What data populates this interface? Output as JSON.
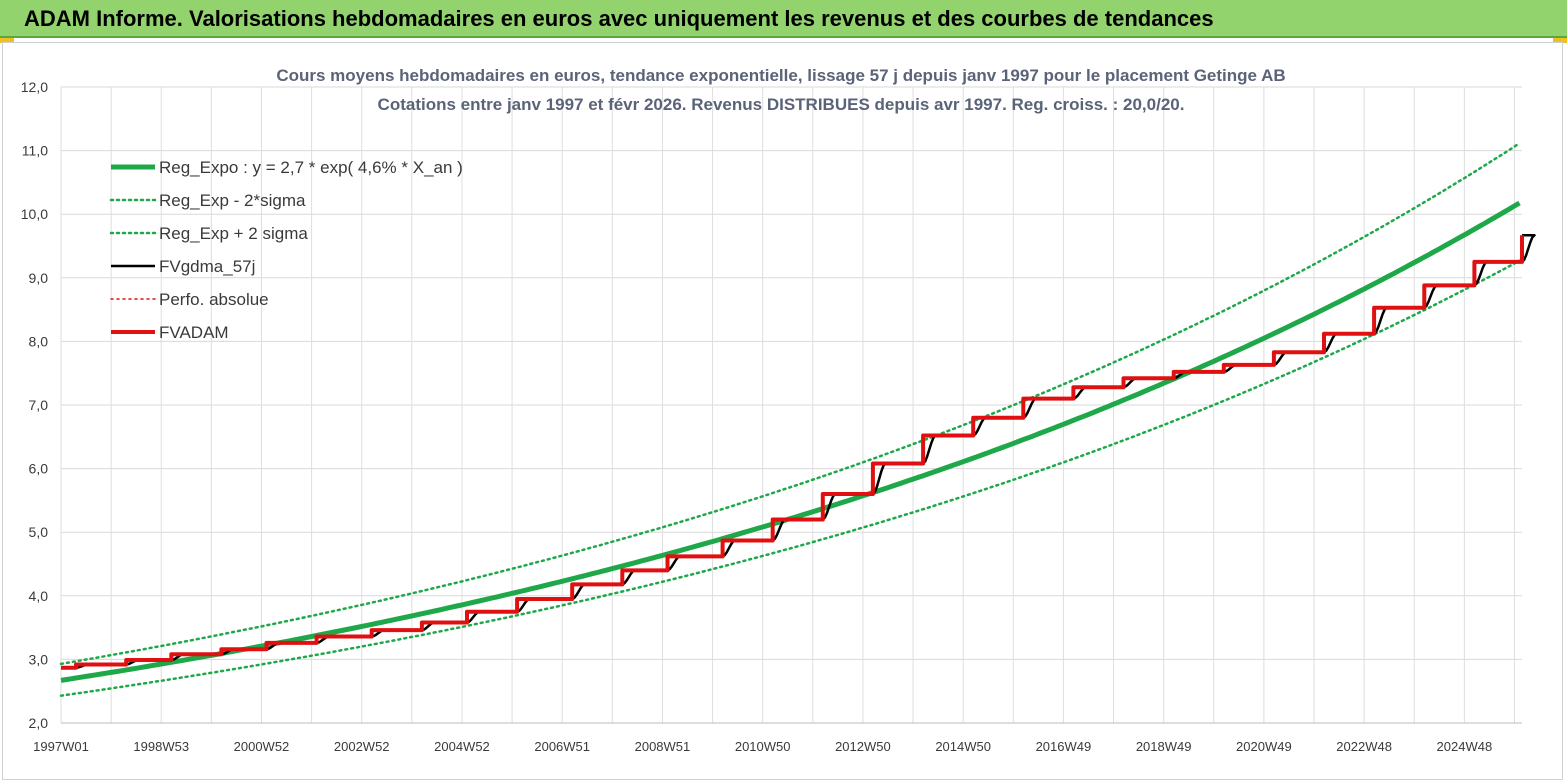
{
  "header": {
    "title": "ADAM Informe. Valorisations hebdomadaires en euros avec uniquement les revenus et des courbes de tendances",
    "background": "#92d36e"
  },
  "chart_data": {
    "type": "line",
    "title_line1": "Cours moyens  hebdomadaires en euros, tendance exponentielle, lissage 57 j depuis janv 1997  pour le placement Getinge AB",
    "title_line2": "Cotations entre janv 1997  et  févr 2026.  Revenus DISTRIBUES  depuis avr 1997.  Reg.  croiss. : 20,0/20.",
    "x_range": [
      1997.0,
      2026.15
    ],
    "ylim": [
      2.0,
      12.0
    ],
    "y_ticks": [
      "2,0",
      "3,0",
      "4,0",
      "5,0",
      "6,0",
      "7,0",
      "8,0",
      "9,0",
      "10,0",
      "11,0",
      "12,0"
    ],
    "x_ticks": [
      {
        "label": "1997W01",
        "x": 1997.0
      },
      {
        "label": "1998W53",
        "x": 1999.0
      },
      {
        "label": "2000W52",
        "x": 2001.0
      },
      {
        "label": "2002W52",
        "x": 2003.0
      },
      {
        "label": "2004W52",
        "x": 2005.0
      },
      {
        "label": "2006W51",
        "x": 2007.0
      },
      {
        "label": "2008W51",
        "x": 2009.0
      },
      {
        "label": "2010W50",
        "x": 2011.0
      },
      {
        "label": "2012W50",
        "x": 2013.0
      },
      {
        "label": "2014W50",
        "x": 2015.0
      },
      {
        "label": "2016W49",
        "x": 2017.0
      },
      {
        "label": "2018W49",
        "x": 2019.0
      },
      {
        "label": "2020W49",
        "x": 2021.0
      },
      {
        "label": "2022W48",
        "x": 2023.0
      },
      {
        "label": "2024W48",
        "x": 2025.0
      }
    ],
    "grid": true,
    "legend_position": "top-left",
    "series": [
      {
        "name": "Reg_Expo : y = 2,7 * exp( 4,6% *  X_an )",
        "color": "#1fa84a",
        "style": "solid",
        "width": 5,
        "x": [
          1997.0,
          2000.0,
          2003.0,
          2006.0,
          2009.0,
          2012.0,
          2015.0,
          2018.0,
          2021.0,
          2024.0,
          2026.15
        ],
        "y": [
          2.67,
          3.07,
          3.52,
          4.04,
          4.64,
          5.33,
          6.12,
          7.02,
          8.07,
          9.26,
          10.2
        ]
      },
      {
        "name": "Reg_Exp - 2*sigma",
        "color": "#1fa84a",
        "style": "dotted",
        "width": 2.5,
        "x": [
          1997.0,
          2000.0,
          2003.0,
          2006.0,
          2009.0,
          2012.0,
          2015.0,
          2018.0,
          2021.0,
          2024.0,
          2026.15
        ],
        "y": [
          2.43,
          2.79,
          3.2,
          3.67,
          4.22,
          4.84,
          5.56,
          6.39,
          7.33,
          8.42,
          9.29
        ]
      },
      {
        "name": "Reg_Exp + 2 sigma",
        "color": "#1fa84a",
        "style": "dotted",
        "width": 2.5,
        "x": [
          1997.0,
          2000.0,
          2003.0,
          2006.0,
          2009.0,
          2012.0,
          2015.0,
          2018.0,
          2021.0,
          2024.0,
          2026.15
        ],
        "y": [
          2.93,
          3.37,
          3.87,
          4.44,
          5.1,
          5.86,
          6.73,
          7.72,
          8.87,
          10.19,
          11.14
        ]
      },
      {
        "name": "FVgdma_57j",
        "color": "#000000",
        "style": "solid",
        "width": 2.5,
        "x": [
          1997.0,
          1997.3,
          1998.3,
          1999.2,
          2000.2,
          2001.1,
          2002.1,
          2003.2,
          2004.2,
          2005.1,
          2006.1,
          2007.2,
          2008.2,
          2009.1,
          2010.2,
          2011.2,
          2012.2,
          2013.2,
          2014.2,
          2015.2,
          2016.2,
          2017.2,
          2018.2,
          2019.2,
          2020.2,
          2021.2,
          2022.2,
          2023.2,
          2024.2,
          2025.2,
          2026.15
        ],
        "y": [
          2.87,
          2.92,
          2.99,
          3.08,
          3.16,
          3.26,
          3.36,
          3.46,
          3.58,
          3.75,
          3.95,
          4.18,
          4.4,
          4.62,
          4.87,
          5.2,
          5.6,
          6.08,
          6.52,
          6.8,
          7.1,
          7.28,
          7.42,
          7.52,
          7.63,
          7.83,
          8.12,
          8.53,
          8.88,
          9.25,
          9.67
        ]
      },
      {
        "name": "Perfo. absolue",
        "color": "#e01010",
        "style": "dotted",
        "width": 1.5,
        "x": [],
        "y": []
      },
      {
        "name": "FVADAM",
        "color": "#e01010",
        "style": "step",
        "width": 4,
        "x": [
          1997.0,
          1997.3,
          1998.3,
          1999.2,
          2000.2,
          2001.1,
          2002.1,
          2003.2,
          2004.2,
          2005.1,
          2006.1,
          2007.2,
          2008.2,
          2009.1,
          2010.2,
          2011.2,
          2012.2,
          2013.2,
          2014.2,
          2015.2,
          2016.2,
          2017.2,
          2018.2,
          2019.2,
          2020.2,
          2021.2,
          2022.2,
          2023.2,
          2024.2,
          2025.2,
          2026.15
        ],
        "y": [
          2.87,
          2.92,
          2.99,
          3.08,
          3.16,
          3.26,
          3.36,
          3.46,
          3.58,
          3.75,
          3.95,
          4.18,
          4.4,
          4.62,
          4.87,
          5.2,
          5.6,
          6.08,
          6.52,
          6.8,
          7.1,
          7.28,
          7.42,
          7.52,
          7.63,
          7.83,
          8.12,
          8.53,
          8.88,
          9.25,
          9.67
        ]
      }
    ]
  }
}
